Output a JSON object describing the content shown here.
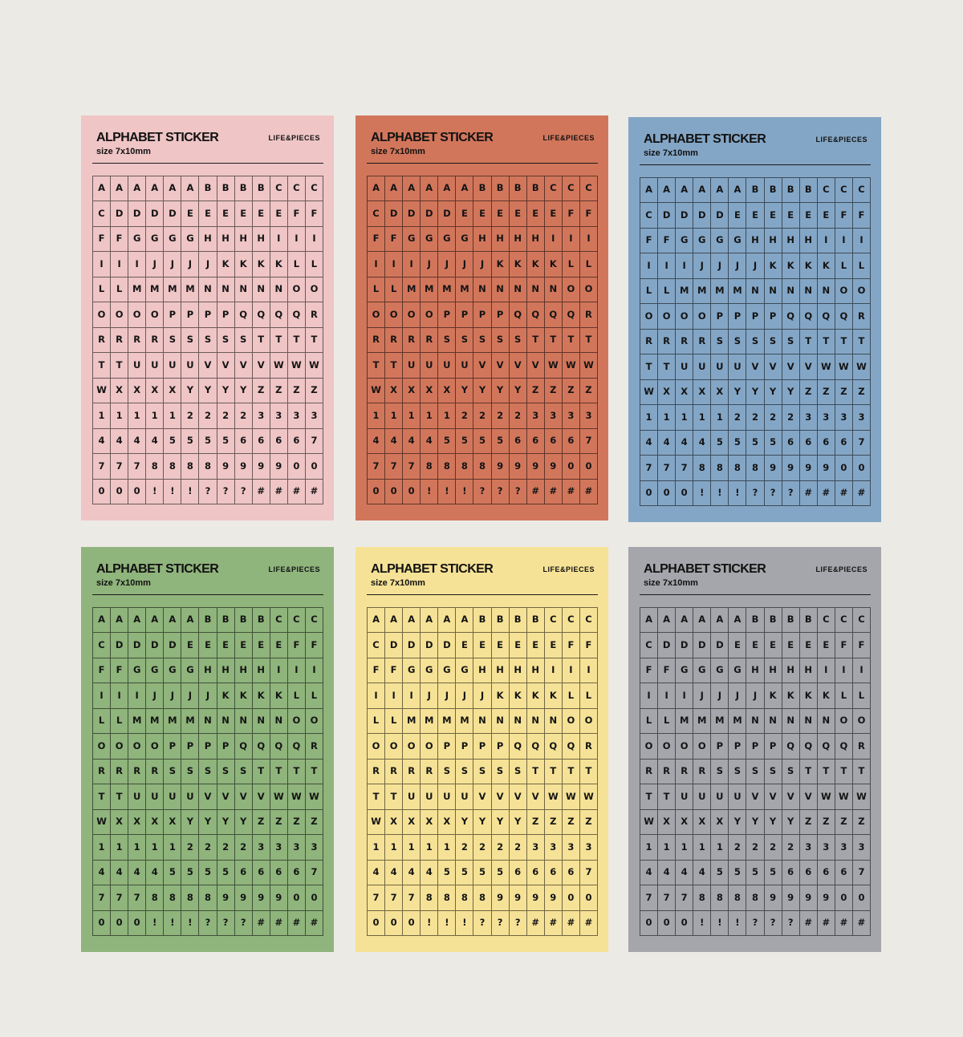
{
  "sheet_common": {
    "title": "ALPHABET STICKER",
    "brand": "LIFE&PIECES",
    "size": "size 7x10mm"
  },
  "sheets": [
    {
      "id": "pink",
      "color": "#efc5c6"
    },
    {
      "id": "orange",
      "color": "#d2765b"
    },
    {
      "id": "blue",
      "color": "#84a6c6"
    },
    {
      "id": "green",
      "color": "#8fb47c"
    },
    {
      "id": "yellow",
      "color": "#f6e296"
    },
    {
      "id": "gray",
      "color": "#a4a6ab"
    }
  ],
  "grid_rows": [
    [
      "A",
      "A",
      "A",
      "A",
      "A",
      "A",
      "B",
      "B",
      "B",
      "B",
      "C",
      "C",
      "C"
    ],
    [
      "C",
      "D",
      "D",
      "D",
      "D",
      "E",
      "E",
      "E",
      "E",
      "E",
      "E",
      "F",
      "F"
    ],
    [
      "F",
      "F",
      "G",
      "G",
      "G",
      "G",
      "H",
      "H",
      "H",
      "H",
      "I",
      "I",
      "I"
    ],
    [
      "I",
      "I",
      "I",
      "J",
      "J",
      "J",
      "J",
      "K",
      "K",
      "K",
      "K",
      "L",
      "L"
    ],
    [
      "L",
      "L",
      "M",
      "M",
      "M",
      "M",
      "N",
      "N",
      "N",
      "N",
      "N",
      "O",
      "O"
    ],
    [
      "O",
      "O",
      "O",
      "O",
      "P",
      "P",
      "P",
      "P",
      "Q",
      "Q",
      "Q",
      "Q",
      "R"
    ],
    [
      "R",
      "R",
      "R",
      "R",
      "S",
      "S",
      "S",
      "S",
      "S",
      "T",
      "T",
      "T",
      "T"
    ],
    [
      "T",
      "T",
      "U",
      "U",
      "U",
      "U",
      "V",
      "V",
      "V",
      "V",
      "W",
      "W",
      "W"
    ],
    [
      "W",
      "X",
      "X",
      "X",
      "X",
      "Y",
      "Y",
      "Y",
      "Y",
      "Z",
      "Z",
      "Z",
      "Z"
    ],
    [
      "1",
      "1",
      "1",
      "1",
      "1",
      "2",
      "2",
      "2",
      "2",
      "3",
      "3",
      "3",
      "3"
    ],
    [
      "4",
      "4",
      "4",
      "4",
      "5",
      "5",
      "5",
      "5",
      "6",
      "6",
      "6",
      "6",
      "7"
    ],
    [
      "7",
      "7",
      "7",
      "8",
      "8",
      "8",
      "8",
      "9",
      "9",
      "9",
      "9",
      "0",
      "0"
    ],
    [
      "0",
      "0",
      "0",
      "!",
      "!",
      "!",
      "?",
      "?",
      "?",
      "#",
      "#",
      "#",
      "#"
    ]
  ]
}
